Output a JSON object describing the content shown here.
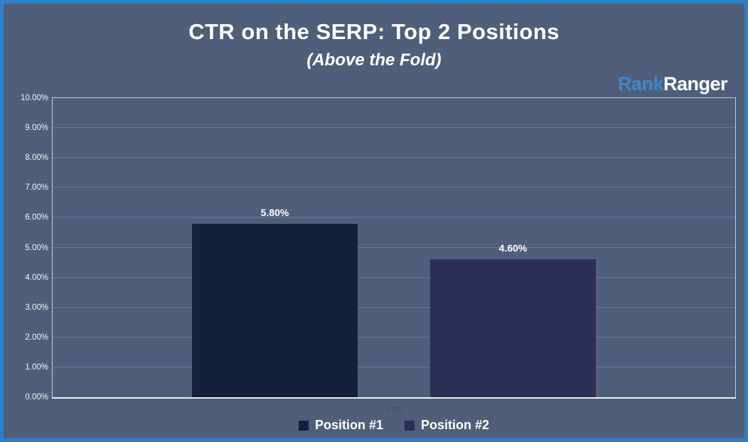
{
  "window": {
    "background_color": "#4f5f7a",
    "border_color": "#2e80c4"
  },
  "header": {
    "title": "CTR on the SERP: Top 2 Positions",
    "subtitle": "(Above the Fold)",
    "logo": {
      "part1": "Rank",
      "part2": "Ranger",
      "part1_color": "#4187c7",
      "part2_color": "#ffffff"
    }
  },
  "chart_data": {
    "type": "bar",
    "title": "CTR on the SERP: Top 2 Positions",
    "subtitle": "(Above the Fold)",
    "categories": [
      "CTR"
    ],
    "series": [
      {
        "name": "Position #1",
        "value": 5.8,
        "label": "5.80%",
        "color": "#13213a"
      },
      {
        "name": "Position #2",
        "value": 4.6,
        "label": "4.60%",
        "color": "#2c2e55"
      }
    ],
    "xlabel": "CTR",
    "ylabel": "",
    "ylim": [
      0,
      10
    ],
    "ytick_step": 1,
    "ytick_labels": [
      "0.00%",
      "1.00%",
      "2.00%",
      "3.00%",
      "4.00%",
      "5.00%",
      "6.00%",
      "7.00%",
      "8.00%",
      "9.00%",
      "10.00%"
    ],
    "grid": true,
    "legend_position": "bottom",
    "colors": {
      "gridline": "#66799c",
      "plot_border": "#c7cdd8",
      "axis_baseline": "#eef1f5",
      "tick_label": "#f2f4f8",
      "value_label": "#ffffff",
      "xlabel": "#47536b",
      "legend_text": "#ffffff"
    }
  }
}
